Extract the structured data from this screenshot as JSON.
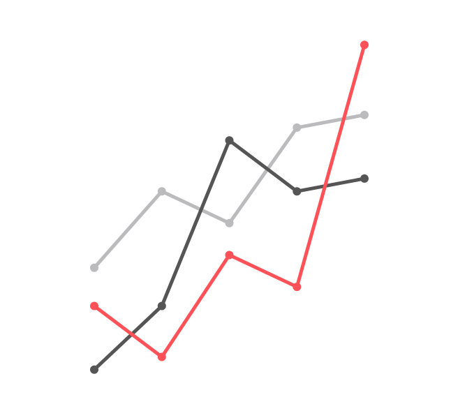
{
  "chart_data": {
    "type": "line",
    "title": "",
    "xlabel": "",
    "ylabel": "",
    "x": [
      1,
      2,
      3,
      4,
      5
    ],
    "ylim": [
      0,
      100
    ],
    "grid": false,
    "series": [
      {
        "color": "#bbbbbd",
        "values": [
          36,
          60,
          50,
          80,
          84
        ]
      },
      {
        "color": "#555555",
        "values": [
          4,
          24,
          76,
          60,
          64
        ]
      },
      {
        "color": "#ff5158",
        "values": [
          24,
          8,
          40,
          30,
          106
        ]
      }
    ]
  }
}
